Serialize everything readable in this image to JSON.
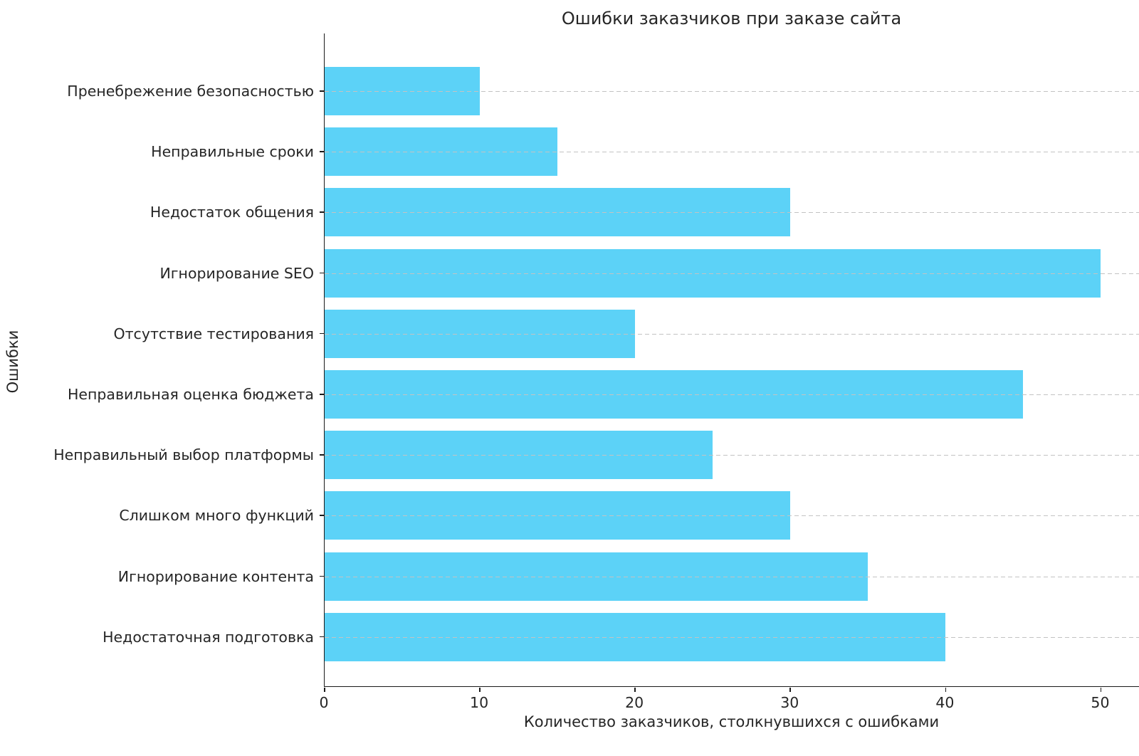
{
  "chart_data": {
    "type": "bar",
    "orientation": "horizontal",
    "title": "Ошибки заказчиков при заказе сайта",
    "xlabel": "Количество заказчиков, столкнувшихся с ошибками",
    "ylabel": "Ошибки",
    "categories": [
      "Пренебрежение безопасностью",
      "Неправильные сроки",
      "Недостаток общения",
      "Игнорирование SEO",
      "Отсутствие тестирования",
      "Неправильная оценка бюджета",
      "Неправильный выбор платформы",
      "Слишком много функций",
      "Игнорирование контента",
      "Недостаточная подготовка"
    ],
    "values": [
      10,
      15,
      30,
      50,
      20,
      45,
      25,
      30,
      35,
      40
    ],
    "xticks": [
      0,
      10,
      20,
      30,
      40,
      50
    ],
    "xlim": [
      0,
      52.5
    ],
    "bar_color": "#5cd2f7",
    "grid": "horizontal-dashed",
    "grid_color": "#c3c3c3",
    "legend": false,
    "background_color": "#ffffff"
  }
}
